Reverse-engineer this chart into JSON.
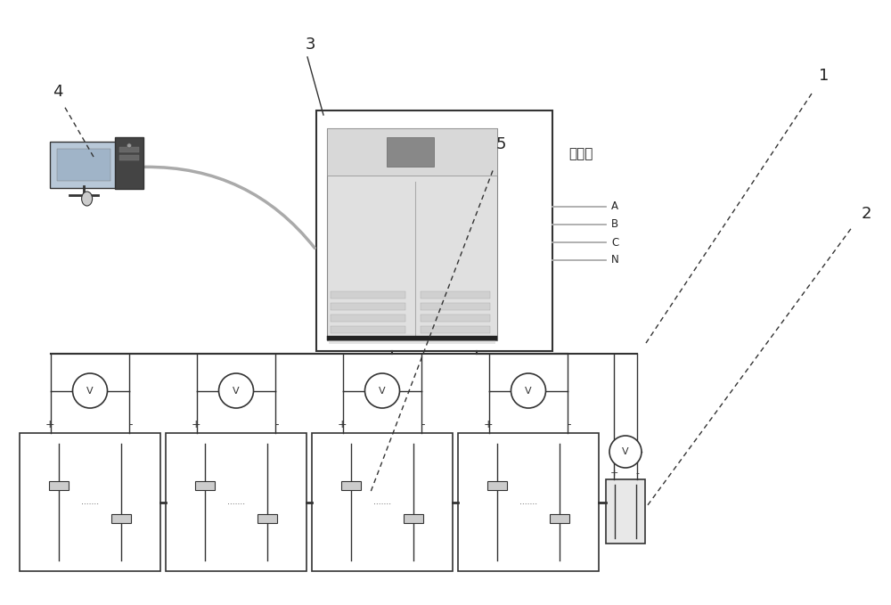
{
  "bg_color": "#ffffff",
  "line_color": "#999999",
  "dark_line": "#333333",
  "gray_line": "#aaaaaa",
  "text_color": "#222222",
  "label_3": "3",
  "label_4": "4",
  "label_1": "1",
  "label_2": "2",
  "label_5": "5",
  "power_side_label": "电源侧",
  "abcn_labels": [
    "A",
    "B",
    "C",
    "N"
  ],
  "dots": ".......",
  "num_cells": 4,
  "fig_width": 10.0,
  "fig_height": 6.79
}
